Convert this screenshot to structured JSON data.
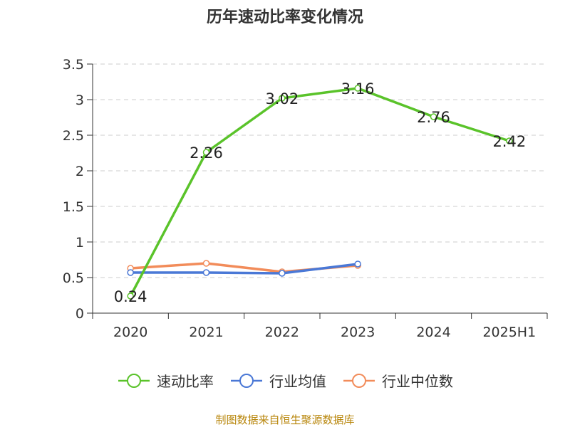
{
  "title": "历年速动比率变化情况",
  "source": "制图数据来自恒生聚源数据库",
  "chart_data": {
    "type": "line",
    "title": "历年速动比率变化情况",
    "categories": [
      "2020",
      "2021",
      "2022",
      "2023",
      "2024",
      "2025H1"
    ],
    "y_ticks": [
      "0",
      "0.5",
      "1",
      "1.5",
      "2",
      "2.5",
      "3",
      "3.5"
    ],
    "ylim": [
      0,
      3.5
    ],
    "grid": true,
    "legend_position": "bottom",
    "series": [
      {
        "name": "速动比率",
        "color": "#5ac32a",
        "show_labels": true,
        "values": [
          0.24,
          2.26,
          3.02,
          3.16,
          2.76,
          2.42
        ],
        "labels": [
          "0.24",
          "2.26",
          "3.02",
          "3.16",
          "2.76",
          "2.42"
        ]
      },
      {
        "name": "行业均值",
        "color": "#4a78d6",
        "show_labels": false,
        "values": [
          0.57,
          0.57,
          0.56,
          0.69,
          null,
          null
        ]
      },
      {
        "name": "行业中位数",
        "color": "#f28c5a",
        "show_labels": false,
        "values": [
          0.63,
          0.7,
          0.58,
          0.67,
          null,
          null
        ]
      }
    ]
  }
}
